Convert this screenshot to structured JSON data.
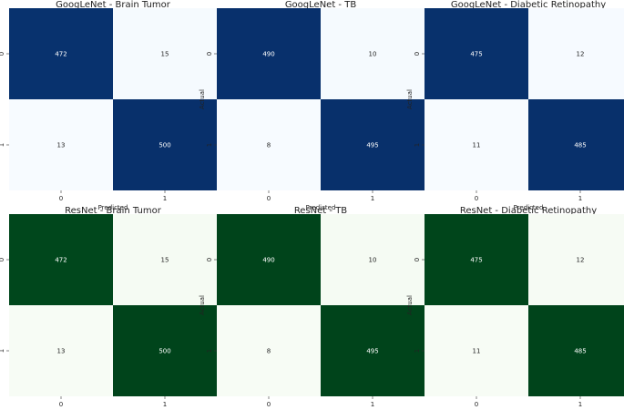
{
  "chart_data": [
    {
      "type": "heatmap",
      "title": "GoogLeNet - Brain Tumor",
      "xlabel": "Predicted",
      "ylabel": "Actual",
      "x_ticks": [
        "0",
        "1"
      ],
      "y_ticks": [
        "0",
        "1"
      ],
      "colormap": "blues",
      "matrix": [
        [
          472,
          15
        ],
        [
          13,
          500
        ]
      ]
    },
    {
      "type": "heatmap",
      "title": "GoogLeNet - TB",
      "xlabel": "Predicted",
      "ylabel": "Actual",
      "x_ticks": [
        "0",
        "1"
      ],
      "y_ticks": [
        "0",
        "1"
      ],
      "colormap": "blues",
      "matrix": [
        [
          490,
          10
        ],
        [
          8,
          495
        ]
      ]
    },
    {
      "type": "heatmap",
      "title": "GoogLeNet - Diabetic Retinopathy",
      "xlabel": "Predicted",
      "ylabel": "Actual",
      "x_ticks": [
        "0",
        "1"
      ],
      "y_ticks": [
        "0",
        "1"
      ],
      "colormap": "blues",
      "matrix": [
        [
          475,
          12
        ],
        [
          11,
          485
        ]
      ]
    },
    {
      "type": "heatmap",
      "title": "ResNet - Brain Tumor",
      "xlabel": "Predicted",
      "ylabel": "Actual",
      "x_ticks": [
        "0",
        "1"
      ],
      "y_ticks": [
        "0",
        "1"
      ],
      "colormap": "greens",
      "matrix": [
        [
          472,
          15
        ],
        [
          13,
          500
        ]
      ]
    },
    {
      "type": "heatmap",
      "title": "ResNet - TB",
      "xlabel": "Predicted",
      "ylabel": "Actual",
      "x_ticks": [
        "0",
        "1"
      ],
      "y_ticks": [
        "0",
        "1"
      ],
      "colormap": "greens",
      "matrix": [
        [
          490,
          10
        ],
        [
          8,
          495
        ]
      ]
    },
    {
      "type": "heatmap",
      "title": "ResNet - Diabetic Retinopathy",
      "xlabel": "Predicted",
      "ylabel": "Actual",
      "x_ticks": [
        "0",
        "1"
      ],
      "y_ticks": [
        "0",
        "1"
      ],
      "colormap": "greens",
      "matrix": [
        [
          475,
          12
        ],
        [
          11,
          485
        ]
      ]
    }
  ],
  "colors": {
    "blues_dark": "#08306b",
    "blues_mid": "#0b4589",
    "blues_light": "#f7fbff",
    "greens_dark": "#00441b",
    "greens_mid": "#005a24",
    "greens_light": "#f7fcf5"
  }
}
